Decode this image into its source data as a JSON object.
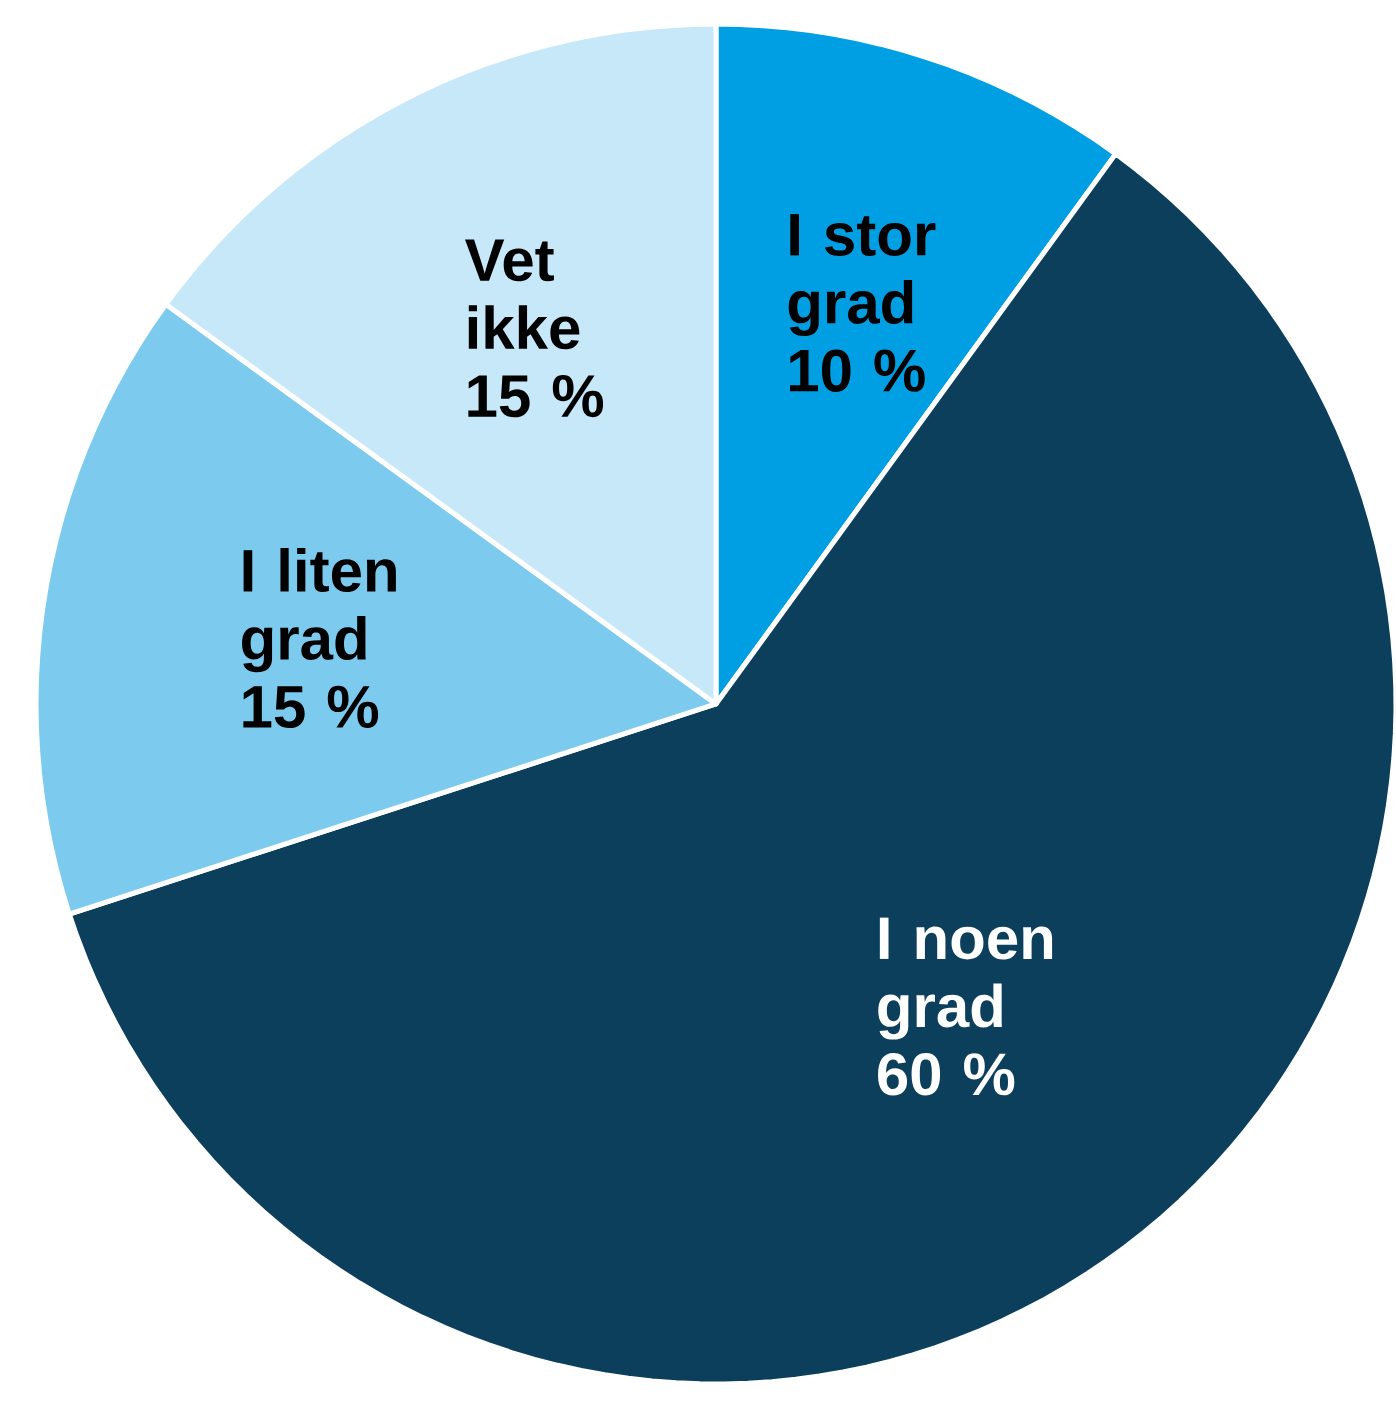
{
  "chart_data": {
    "type": "pie",
    "categories": [
      "I stor grad",
      "I noen grad",
      "I liten grad",
      "Vet ikke"
    ],
    "values": [
      10,
      60,
      15,
      15
    ],
    "value_labels": [
      "10 %",
      "60 %",
      "15 %",
      "15 %"
    ],
    "colors": [
      "#009fe3",
      "#0b3f5b",
      "#7ccbef",
      "#c6e8f8"
    ]
  }
}
